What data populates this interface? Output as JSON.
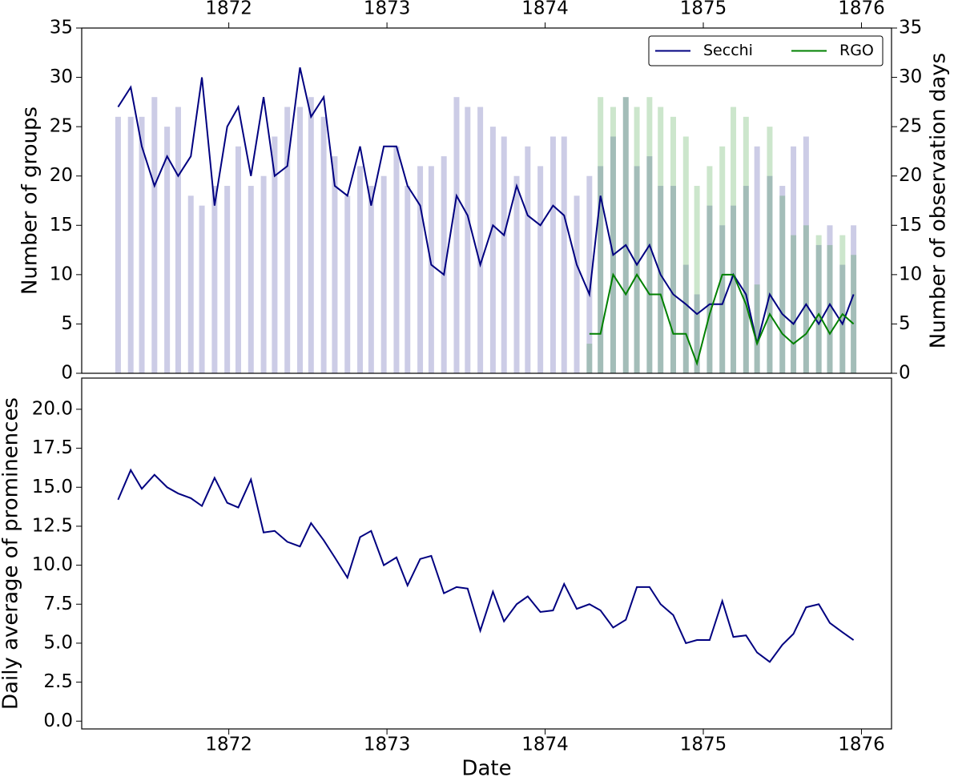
{
  "chart_data": [
    {
      "type": "line",
      "ylabel": "Number of groups",
      "y2label": "Number of observation days",
      "xlim": [
        1871.07,
        1876.19
      ],
      "xticks": [
        1872,
        1873,
        1874,
        1875,
        1876
      ],
      "ylim": [
        0,
        35
      ],
      "yticks": [
        0,
        5,
        10,
        15,
        20,
        25,
        30,
        35
      ],
      "y2lim": [
        0,
        35
      ],
      "y2ticks": [
        0,
        5,
        10,
        15,
        20,
        25,
        30,
        35
      ],
      "legend": "upper right",
      "x": [
        1871.3,
        1871.38,
        1871.45,
        1871.53,
        1871.61,
        1871.68,
        1871.76,
        1871.83,
        1871.91,
        1871.99,
        1872.06,
        1872.14,
        1872.22,
        1872.29,
        1872.37,
        1872.45,
        1872.52,
        1872.6,
        1872.67,
        1872.75,
        1872.83,
        1872.9,
        1872.98,
        1873.06,
        1873.13,
        1873.21,
        1873.28,
        1873.36,
        1873.44,
        1873.51,
        1873.59,
        1873.67,
        1873.74,
        1873.82,
        1873.89,
        1873.97,
        1874.05,
        1874.12,
        1874.2,
        1874.28,
        1874.35,
        1874.43,
        1874.51,
        1874.58,
        1874.66,
        1874.73,
        1874.81,
        1874.89,
        1874.96,
        1875.04,
        1875.12,
        1875.19,
        1875.27,
        1875.34,
        1875.42,
        1875.5,
        1875.57,
        1875.65,
        1875.73,
        1875.8,
        1875.88,
        1875.95
      ],
      "series": [
        {
          "type": "bar",
          "axis": "y2",
          "color": "#000080",
          "alpha": 0.2,
          "values": [
            26,
            26,
            26,
            28,
            25,
            27,
            18,
            17,
            19,
            19,
            23,
            19,
            20,
            24,
            27,
            27,
            28,
            26,
            22,
            18,
            21,
            19,
            20,
            23,
            19,
            21,
            21,
            22,
            28,
            27,
            27,
            25,
            24,
            20,
            23,
            21,
            24,
            24,
            18,
            20,
            21,
            24,
            28,
            21,
            22,
            19,
            19,
            11,
            8,
            17,
            15,
            17,
            19,
            23,
            20,
            19,
            23,
            24,
            13,
            15,
            11,
            15
          ]
        },
        {
          "type": "bar",
          "axis": "y2",
          "color": "#008000",
          "alpha": 0.2,
          "values": [
            null,
            null,
            null,
            null,
            null,
            null,
            null,
            null,
            null,
            null,
            null,
            null,
            null,
            null,
            null,
            null,
            null,
            null,
            null,
            null,
            null,
            null,
            null,
            null,
            null,
            null,
            null,
            null,
            null,
            null,
            null,
            null,
            null,
            null,
            null,
            null,
            null,
            null,
            null,
            3,
            28,
            27,
            28,
            27,
            28,
            27,
            26,
            24,
            19,
            21,
            23,
            27,
            26,
            9,
            25,
            18,
            14,
            15,
            14,
            13,
            14,
            12
          ]
        },
        {
          "name": "Secchi",
          "color": "#000080",
          "values": [
            27,
            29,
            23,
            19,
            22,
            20,
            22,
            30,
            17,
            25,
            27,
            20,
            28,
            20,
            21,
            31,
            26,
            28,
            19,
            18,
            23,
            17,
            23,
            23,
            19,
            17,
            11,
            10,
            18,
            16,
            11,
            15,
            14,
            19,
            16,
            15,
            17,
            16,
            11,
            8,
            18,
            12,
            13,
            11,
            13,
            10,
            8,
            7,
            6,
            7,
            7,
            10,
            8,
            3,
            8,
            6,
            5,
            7,
            5,
            7,
            5,
            8
          ]
        },
        {
          "name": "RGO",
          "color": "#008000",
          "values": [
            null,
            null,
            null,
            null,
            null,
            null,
            null,
            null,
            null,
            null,
            null,
            null,
            null,
            null,
            null,
            null,
            null,
            null,
            null,
            null,
            null,
            null,
            null,
            null,
            null,
            null,
            null,
            null,
            null,
            null,
            null,
            null,
            null,
            null,
            null,
            null,
            null,
            null,
            null,
            4,
            4,
            10,
            8,
            10,
            8,
            8,
            4,
            4,
            1,
            6,
            10,
            10,
            7,
            3,
            6,
            4,
            3,
            4,
            6,
            4,
            6,
            5
          ]
        }
      ]
    },
    {
      "type": "line",
      "ylabel": "Daily average of prominences",
      "xlabel": "Date",
      "xlim": [
        1871.07,
        1876.19
      ],
      "xticks": [
        1872,
        1873,
        1874,
        1875,
        1876
      ],
      "ylim": [
        -0.5,
        22
      ],
      "yticks": [
        {
          "value": 0,
          "label": "0.0"
        },
        2.5,
        {
          "value": 5,
          "label": "5.0"
        },
        7.5,
        {
          "value": 10,
          "label": "10.0"
        },
        12.5,
        {
          "value": 15,
          "label": "15.0"
        },
        17.5,
        {
          "value": 20,
          "label": "20.0"
        }
      ],
      "x": [
        1871.3,
        1871.38,
        1871.45,
        1871.53,
        1871.61,
        1871.68,
        1871.76,
        1871.83,
        1871.91,
        1871.99,
        1872.06,
        1872.14,
        1872.22,
        1872.29,
        1872.37,
        1872.45,
        1872.52,
        1872.6,
        1872.67,
        1872.75,
        1872.83,
        1872.9,
        1872.98,
        1873.06,
        1873.13,
        1873.21,
        1873.28,
        1873.36,
        1873.44,
        1873.51,
        1873.59,
        1873.67,
        1873.74,
        1873.82,
        1873.89,
        1873.97,
        1874.05,
        1874.12,
        1874.2,
        1874.28,
        1874.35,
        1874.43,
        1874.51,
        1874.58,
        1874.66,
        1874.73,
        1874.81,
        1874.89,
        1874.96,
        1875.04,
        1875.12,
        1875.19,
        1875.27,
        1875.34,
        1875.42,
        1875.5,
        1875.57,
        1875.65,
        1875.73,
        1875.8,
        1875.88,
        1875.95
      ],
      "series": [
        {
          "color": "#000080",
          "values": [
            14.2,
            16.1,
            14.9,
            15.8,
            15.0,
            14.6,
            14.3,
            13.8,
            15.6,
            14.0,
            13.7,
            15.5,
            12.1,
            12.2,
            11.5,
            11.2,
            12.7,
            11.6,
            10.5,
            9.2,
            11.8,
            12.2,
            10.0,
            10.5,
            8.7,
            10.4,
            10.6,
            8.2,
            8.6,
            8.5,
            5.8,
            8.3,
            6.4,
            7.5,
            8.0,
            7.0,
            7.1,
            8.8,
            7.2,
            7.5,
            7.1,
            6.0,
            6.5,
            8.6,
            8.6,
            7.5,
            6.8,
            5.0,
            5.2,
            5.2,
            7.7,
            5.4,
            5.5,
            4.4,
            3.8,
            4.9,
            5.6,
            7.3,
            7.5,
            6.3,
            5.7,
            5.2
          ]
        }
      ]
    }
  ]
}
